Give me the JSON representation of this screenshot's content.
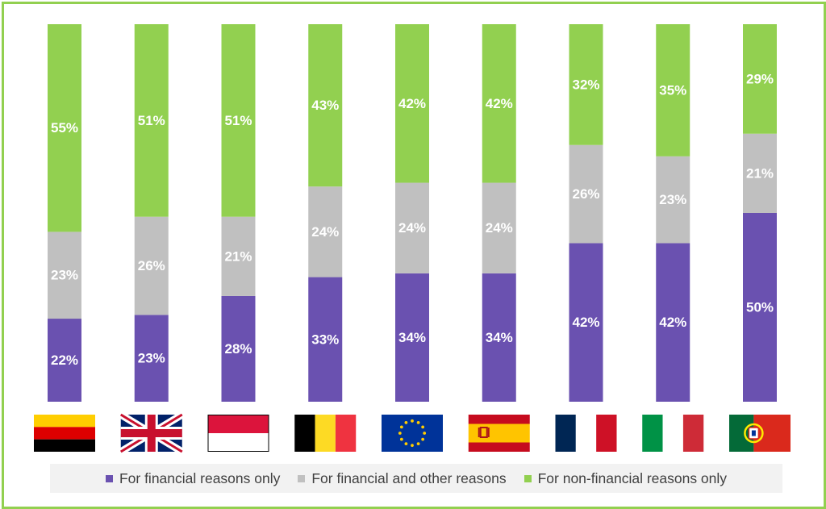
{
  "chart_data": {
    "type": "bar",
    "stacked": true,
    "categories": [
      "Germany",
      "United Kingdom",
      "Indonesia",
      "Belgium",
      "European Union",
      "Spain",
      "France",
      "Italy",
      "Portugal"
    ],
    "flag_icons": [
      "flag-germany-icon",
      "flag-united-kingdom-icon",
      "flag-indonesia-icon",
      "flag-belgium-icon",
      "flag-european-union-icon",
      "flag-spain-icon",
      "flag-france-icon",
      "flag-italy-icon",
      "flag-portugal-icon"
    ],
    "series": [
      {
        "name": "For financial reasons only",
        "color": "#6a51b0",
        "values": [
          22,
          23,
          28,
          33,
          34,
          34,
          42,
          42,
          50
        ]
      },
      {
        "name": "For financial and other reasons",
        "color": "#c0c0c0",
        "values": [
          23,
          26,
          21,
          24,
          24,
          24,
          26,
          23,
          21
        ]
      },
      {
        "name": "For non-financial reasons only",
        "color": "#92d050",
        "values": [
          55,
          51,
          51,
          43,
          42,
          42,
          32,
          35,
          29
        ]
      }
    ],
    "value_suffix": "%",
    "ylim": [
      0,
      100
    ],
    "grid": false,
    "legend_position": "bottom"
  }
}
